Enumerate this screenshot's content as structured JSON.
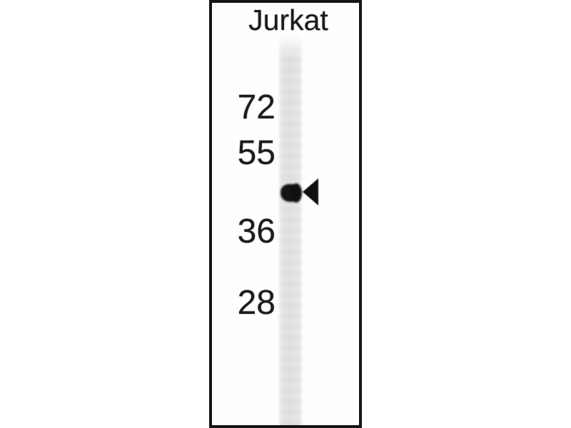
{
  "figure": {
    "type": "western-blot",
    "lane_label": "Jurkat",
    "mw_markers": [
      "72",
      "55",
      "36",
      "28"
    ],
    "icons": {
      "band_arrow": "left-pointing-filled-arrowhead"
    },
    "colors": {
      "background": "#ffffff",
      "frame_border": "#151515",
      "lane": "#e4e4e4",
      "band": "#141414",
      "text": "#1c1c1c"
    }
  }
}
